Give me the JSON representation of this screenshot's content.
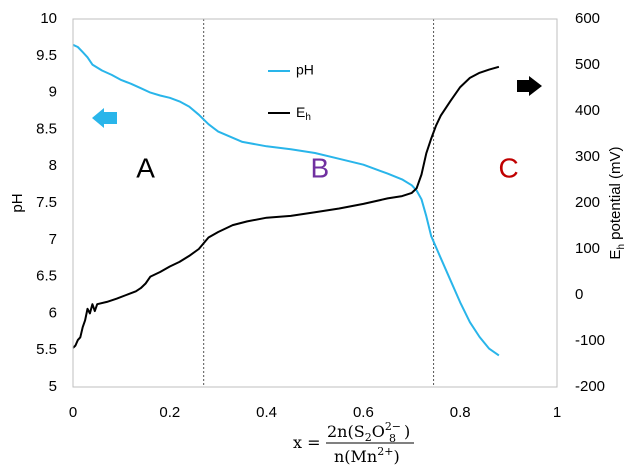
{
  "chart_data": {
    "type": "line",
    "x_axis": {
      "min": 0,
      "max": 1,
      "ticks": [
        0,
        0.2,
        0.4,
        0.6,
        0.8,
        1
      ],
      "tick_labels": [
        "0",
        "0.2",
        "0.4",
        "0.6",
        "0.8",
        "1"
      ],
      "label_prefix": "x =",
      "label_numerator": "2n(S",
      "label_numerator_sub1": "2",
      "label_numerator_mid": "O",
      "label_numerator_sup2": "2−",
      "label_numerator_sub2": "8",
      "label_numerator_end": ")",
      "label_denominator": "n(Mn",
      "label_denominator_sup": "2+",
      "label_denominator_end": ")"
    },
    "y_left": {
      "label": "pH",
      "min": 5,
      "max": 10,
      "ticks": [
        5,
        5.5,
        6,
        6.5,
        7,
        7.5,
        8,
        8.5,
        9,
        9.5,
        10
      ],
      "tick_labels": [
        "5",
        "5.5",
        "6",
        "6.5",
        "7",
        "7.5",
        "8",
        "8.5",
        "9",
        "9.5",
        "10"
      ]
    },
    "y_right": {
      "label_main": "E",
      "label_sub": "h",
      "label_rest": " potential (mV)",
      "min": -200,
      "max": 600,
      "ticks": [
        -200,
        -100,
        0,
        100,
        200,
        300,
        400,
        500,
        600
      ],
      "tick_labels": [
        "-200",
        "-100",
        "0",
        "100",
        "200",
        "300",
        "400",
        "500",
        "600"
      ]
    },
    "series": [
      {
        "name": "pH",
        "axis": "left",
        "color": "#29b5ea",
        "x": [
          0.0,
          0.01,
          0.02,
          0.03,
          0.04,
          0.06,
          0.08,
          0.1,
          0.12,
          0.14,
          0.16,
          0.18,
          0.2,
          0.22,
          0.24,
          0.26,
          0.28,
          0.3,
          0.35,
          0.4,
          0.45,
          0.5,
          0.55,
          0.6,
          0.65,
          0.68,
          0.7,
          0.71,
          0.72,
          0.73,
          0.74,
          0.76,
          0.78,
          0.8,
          0.82,
          0.84,
          0.86,
          0.88
        ],
        "y": [
          9.65,
          9.62,
          9.55,
          9.48,
          9.38,
          9.3,
          9.24,
          9.17,
          9.12,
          9.06,
          9.0,
          8.96,
          8.93,
          8.88,
          8.81,
          8.7,
          8.57,
          8.47,
          8.33,
          8.27,
          8.23,
          8.18,
          8.1,
          8.02,
          7.9,
          7.82,
          7.74,
          7.67,
          7.55,
          7.32,
          7.05,
          6.75,
          6.45,
          6.15,
          5.88,
          5.68,
          5.52,
          5.43
        ]
      },
      {
        "name": "Eh",
        "name_main": "E",
        "name_sub": "h",
        "axis": "right",
        "color": "#000000",
        "x": [
          0.0,
          0.005,
          0.01,
          0.015,
          0.02,
          0.025,
          0.03,
          0.035,
          0.04,
          0.045,
          0.05,
          0.07,
          0.09,
          0.11,
          0.13,
          0.14,
          0.15,
          0.16,
          0.18,
          0.2,
          0.22,
          0.24,
          0.26,
          0.28,
          0.3,
          0.33,
          0.36,
          0.4,
          0.45,
          0.5,
          0.55,
          0.6,
          0.65,
          0.68,
          0.7,
          0.71,
          0.72,
          0.73,
          0.74,
          0.75,
          0.76,
          0.78,
          0.8,
          0.82,
          0.84,
          0.86,
          0.88
        ],
        "y": [
          -115,
          -110,
          -98,
          -92,
          -70,
          -55,
          -30,
          -40,
          -20,
          -35,
          -20,
          -15,
          -8,
          0,
          8,
          15,
          25,
          40,
          50,
          62,
          72,
          85,
          100,
          125,
          137,
          152,
          160,
          168,
          172,
          180,
          188,
          198,
          210,
          215,
          222,
          232,
          262,
          308,
          340,
          368,
          390,
          422,
          452,
          472,
          483,
          490,
          496
        ]
      }
    ],
    "vlines": [
      0.27,
      0.745
    ],
    "regions": [
      {
        "label": "A",
        "x": 0.15,
        "color": "#000000"
      },
      {
        "label": "B",
        "x": 0.51,
        "color": "#7030a0"
      },
      {
        "label": "C",
        "x": 0.9,
        "color": "#c00000"
      }
    ],
    "arrows": [
      {
        "direction": "left",
        "color": "#29b5ea",
        "axis": "pH"
      },
      {
        "direction": "right",
        "color": "#000000",
        "axis": "Eh"
      }
    ],
    "legend": {
      "placement": "top-center"
    },
    "grid": false
  }
}
